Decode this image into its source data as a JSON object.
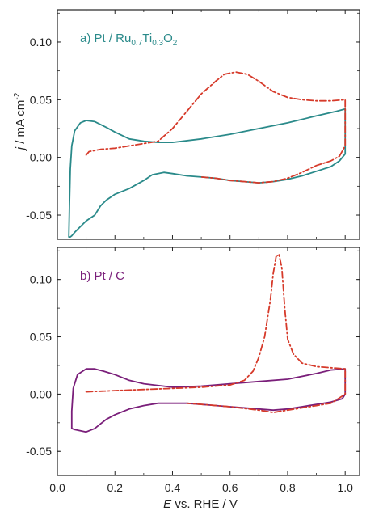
{
  "chart_data": [
    {
      "type": "line",
      "panel_label": {
        "prefix": "a) Pt / Ru",
        "sub1": "0.7",
        "mid": "Ti",
        "sub2": "0.3",
        "mid2": "O",
        "sub3": "2"
      },
      "label_color": "#2a8a8a",
      "xlim": [
        0.0,
        1.05
      ],
      "ylim": [
        -0.071,
        0.128
      ],
      "yticks": [
        -0.05,
        0.0,
        0.05,
        0.1
      ],
      "ytick_labels": [
        "-0.05",
        "0.00",
        "0.05",
        "0.10"
      ],
      "ylabel": {
        "italic": "j",
        "rest": " / mA cm",
        "sup": "-2"
      },
      "series": [
        {
          "style": "solid",
          "color": "#2a8a8a",
          "x": [
            1.0,
            0.98,
            0.95,
            0.9,
            0.85,
            0.8,
            0.75,
            0.7,
            0.65,
            0.6,
            0.55,
            0.5,
            0.45,
            0.4,
            0.37,
            0.33,
            0.3,
            0.25,
            0.2,
            0.17,
            0.15,
            0.13,
            0.1,
            0.08,
            0.06,
            0.05,
            0.045,
            0.04,
            0.042,
            0.045,
            0.05,
            0.06,
            0.08,
            0.1,
            0.13,
            0.17,
            0.2,
            0.25,
            0.3,
            0.35,
            0.4,
            0.5,
            0.6,
            0.7,
            0.8,
            0.9,
            0.97,
            1.0,
            1.0
          ],
          "y": [
            0.003,
            -0.003,
            -0.008,
            -0.012,
            -0.016,
            -0.019,
            -0.021,
            -0.022,
            -0.021,
            -0.02,
            -0.018,
            -0.017,
            -0.016,
            -0.014,
            -0.013,
            -0.015,
            -0.02,
            -0.027,
            -0.032,
            -0.037,
            -0.042,
            -0.05,
            -0.055,
            -0.06,
            -0.065,
            -0.068,
            -0.069,
            -0.069,
            -0.04,
            -0.01,
            0.01,
            0.023,
            0.03,
            0.032,
            0.031,
            0.026,
            0.022,
            0.016,
            0.014,
            0.013,
            0.013,
            0.016,
            0.02,
            0.025,
            0.03,
            0.036,
            0.04,
            0.042,
            0.003
          ]
        },
        {
          "style": "dashdot",
          "color": "#d63a2a",
          "x": [
            0.1,
            0.11,
            0.15,
            0.2,
            0.25,
            0.3,
            0.35,
            0.4,
            0.45,
            0.5,
            0.55,
            0.58,
            0.62,
            0.66,
            0.7,
            0.75,
            0.8,
            0.85,
            0.9,
            0.95,
            1.0,
            1.0,
            0.98,
            0.95,
            0.9,
            0.85,
            0.8,
            0.75,
            0.7,
            0.65,
            0.6,
            0.55,
            0.5
          ],
          "y": [
            0.002,
            0.005,
            0.007,
            0.008,
            0.01,
            0.012,
            0.014,
            0.025,
            0.04,
            0.055,
            0.066,
            0.072,
            0.074,
            0.072,
            0.066,
            0.057,
            0.052,
            0.05,
            0.049,
            0.049,
            0.05,
            0.01,
            0.001,
            -0.003,
            -0.007,
            -0.013,
            -0.018,
            -0.021,
            -0.022,
            -0.021,
            -0.02,
            -0.018,
            -0.017
          ]
        }
      ]
    },
    {
      "type": "line",
      "panel_label": {
        "prefix": "b) Pt / C"
      },
      "label_color": "#7a1f7a",
      "xlim": [
        0.0,
        1.05
      ],
      "ylim": [
        -0.071,
        0.128
      ],
      "yticks": [
        -0.05,
        0.0,
        0.05,
        0.1
      ],
      "ytick_labels": [
        "-0.05",
        "0.00",
        "0.05",
        "0.10"
      ],
      "xticks": [
        0.0,
        0.2,
        0.4,
        0.6,
        0.8,
        1.0
      ],
      "xtick_labels": [
        "0.0",
        "0.2",
        "0.4",
        "0.6",
        "0.8",
        "1.0"
      ],
      "xlabel": {
        "italic": "E",
        "rest": " vs. RHE / V"
      },
      "series": [
        {
          "style": "solid",
          "color": "#7a1f7a",
          "x": [
            1.0,
            0.99,
            0.95,
            0.9,
            0.85,
            0.8,
            0.75,
            0.7,
            0.6,
            0.5,
            0.45,
            0.4,
            0.35,
            0.3,
            0.25,
            0.2,
            0.17,
            0.15,
            0.13,
            0.1,
            0.08,
            0.06,
            0.05,
            0.05,
            0.055,
            0.07,
            0.1,
            0.13,
            0.16,
            0.2,
            0.25,
            0.3,
            0.4,
            0.5,
            0.6,
            0.7,
            0.8,
            0.9,
            0.95,
            1.0,
            1.0
          ],
          "y": [
            0.0,
            -0.004,
            -0.007,
            -0.009,
            -0.011,
            -0.013,
            -0.014,
            -0.013,
            -0.011,
            -0.009,
            -0.008,
            -0.008,
            -0.008,
            -0.01,
            -0.013,
            -0.018,
            -0.022,
            -0.026,
            -0.03,
            -0.033,
            -0.032,
            -0.031,
            -0.03,
            -0.015,
            0.005,
            0.017,
            0.022,
            0.022,
            0.02,
            0.017,
            0.012,
            0.009,
            0.006,
            0.007,
            0.009,
            0.011,
            0.013,
            0.018,
            0.021,
            0.022,
            0.0
          ]
        },
        {
          "style": "dashdot",
          "color": "#d63a2a",
          "x": [
            0.1,
            0.2,
            0.3,
            0.4,
            0.5,
            0.6,
            0.65,
            0.68,
            0.7,
            0.72,
            0.74,
            0.75,
            0.76,
            0.77,
            0.78,
            0.79,
            0.8,
            0.82,
            0.85,
            0.9,
            0.95,
            1.0,
            1.0,
            0.97,
            0.95,
            0.9,
            0.85,
            0.8,
            0.75,
            0.7,
            0.6,
            0.5,
            0.45
          ],
          "y": [
            0.002,
            0.003,
            0.004,
            0.005,
            0.006,
            0.008,
            0.012,
            0.02,
            0.032,
            0.05,
            0.082,
            0.105,
            0.12,
            0.122,
            0.11,
            0.075,
            0.048,
            0.035,
            0.027,
            0.024,
            0.023,
            0.022,
            0.0,
            -0.005,
            -0.008,
            -0.01,
            -0.012,
            -0.014,
            -0.016,
            -0.014,
            -0.011,
            -0.009,
            -0.008
          ]
        }
      ]
    }
  ]
}
